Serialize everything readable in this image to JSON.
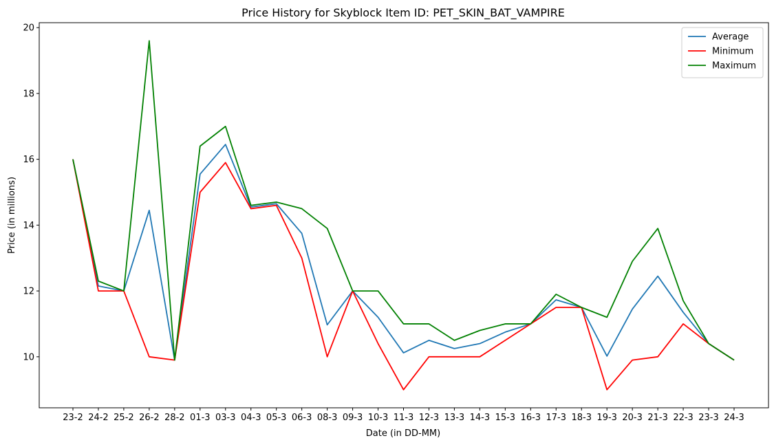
{
  "chart_data": {
    "type": "line",
    "title": "Price History for Skyblock Item ID: PET_SKIN_BAT_VAMPIRE",
    "xlabel": "Date (in DD-MM)",
    "ylabel": "Price (in millions)",
    "categories": [
      "23-2",
      "24-2",
      "25-2",
      "26-2",
      "28-2",
      "01-3",
      "03-3",
      "04-3",
      "05-3",
      "06-3",
      "08-3",
      "09-3",
      "10-3",
      "11-3",
      "12-3",
      "13-3",
      "14-3",
      "15-3",
      "16-3",
      "17-3",
      "18-3",
      "19-3",
      "20-3",
      "21-3",
      "22-3",
      "23-3",
      "24-3"
    ],
    "ylim": [
      8.45,
      20.15
    ],
    "yticks": [
      10,
      12,
      14,
      16,
      18,
      20
    ],
    "grid": false,
    "legend_position": "top-right",
    "series": [
      {
        "name": "Average",
        "color": "#1f77b4",
        "values": [
          16.0,
          12.15,
          12.0,
          14.45,
          9.9,
          15.55,
          16.45,
          14.55,
          14.65,
          13.75,
          10.97,
          12.0,
          11.2,
          10.12,
          10.5,
          10.25,
          10.4,
          10.75,
          11.0,
          11.73,
          11.5,
          10.02,
          11.45,
          12.45,
          11.35,
          10.4,
          9.9
        ]
      },
      {
        "name": "Minimum",
        "color": "#ff0000",
        "values": [
          16.0,
          12.0,
          12.0,
          10.0,
          9.9,
          15.0,
          15.9,
          14.5,
          14.6,
          13.0,
          10.0,
          12.0,
          10.4,
          9.0,
          10.0,
          10.0,
          10.0,
          10.5,
          11.0,
          11.5,
          11.5,
          9.0,
          9.9,
          10.0,
          11.0,
          10.4,
          9.9
        ]
      },
      {
        "name": "Maximum",
        "color": "#008000",
        "values": [
          16.0,
          12.3,
          12.0,
          19.6,
          9.9,
          16.4,
          17.0,
          14.6,
          14.7,
          14.5,
          13.9,
          12.0,
          12.0,
          11.0,
          11.0,
          10.5,
          10.8,
          11.0,
          11.0,
          11.9,
          11.5,
          11.2,
          12.9,
          13.9,
          11.7,
          10.4,
          9.9
        ]
      }
    ]
  }
}
